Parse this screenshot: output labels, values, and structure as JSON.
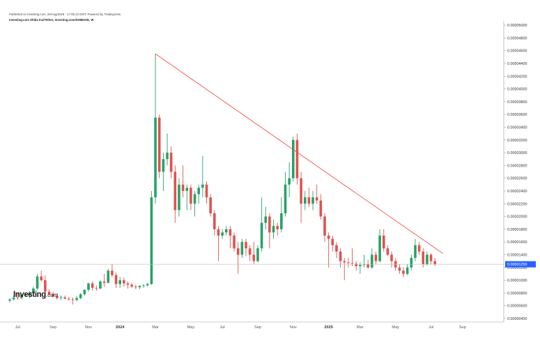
{
  "header": {
    "published_line": "Published on Investing.com, 26/Aug/2025 - 17:05:13 GMT, Powered by TradingView.",
    "url_line": "Investing.com Shiba Inu/Tether, Investing.com/SHIBUSD, W"
  },
  "logo": {
    "text": "Investing",
    "domain": ".com"
  },
  "price_label": "0.00001250",
  "colors": {
    "up": "#26a269",
    "down": "#e0524f",
    "trendline": "#f05050",
    "axis": "#9a9a9a",
    "price_tag": "#2962ff"
  },
  "chart_data": {
    "type": "candlestick",
    "title": "Investing.com Shiba Inu/Tether",
    "interval": "W",
    "ylim": [
      3.5e-06,
      5.2e-06
    ],
    "y_ticks": [
      "0.00000400",
      "0.00000600",
      "0.00000800",
      "0.00001000",
      "0.00001200",
      "0.00001400",
      "0.00001600",
      "0.00001800",
      "0.00002000",
      "0.00002200",
      "0.00002400",
      "0.00002600",
      "0.00002800",
      "0.00003000",
      "0.00003200",
      "0.00003400",
      "0.00003600",
      "0.00003800",
      "0.00004000",
      "0.00004200",
      "0.00004400",
      "0.00004600",
      "0.00004800",
      "0.00005000"
    ],
    "x_ticks": [
      {
        "label": "Jul",
        "bold": false,
        "week": 2
      },
      {
        "label": "Sep",
        "bold": false,
        "week": 11
      },
      {
        "label": "Nov",
        "bold": false,
        "week": 20
      },
      {
        "label": "2024",
        "bold": true,
        "week": 28
      },
      {
        "label": "Mar",
        "bold": false,
        "week": 37
      },
      {
        "label": "May",
        "bold": false,
        "week": 46
      },
      {
        "label": "Jul",
        "bold": false,
        "week": 54
      },
      {
        "label": "Sep",
        "bold": false,
        "week": 63
      },
      {
        "label": "Nov",
        "bold": false,
        "week": 72
      },
      {
        "label": "2025",
        "bold": true,
        "week": 81
      },
      {
        "label": "Mar",
        "bold": false,
        "week": 89
      },
      {
        "label": "May",
        "bold": false,
        "week": 98
      },
      {
        "label": "Jul",
        "bold": false,
        "week": 107
      },
      {
        "label": "Sep",
        "bold": false,
        "week": 115
      }
    ],
    "candles": [
      [
        6.8e-06,
        7.2e-06,
        6.5e-06,
        7e-06
      ],
      [
        7e-06,
        7.6e-06,
        6.8e-06,
        7.3e-06
      ],
      [
        7.3e-06,
        8e-06,
        6.9e-06,
        7.2e-06
      ],
      [
        7.2e-06,
        7.8e-06,
        7e-06,
        7.7e-06
      ],
      [
        7.7e-06,
        8.1e-06,
        7.4e-06,
        7.6e-06
      ],
      [
        7.6e-06,
        8.3e-06,
        7.2e-06,
        8e-06
      ],
      [
        8e-06,
        9e-06,
        7.8e-06,
        8.7e-06
      ],
      [
        8.7e-06,
        1.1e-05,
        8.5e-06,
        1.06e-05
      ],
      [
        1.06e-05,
        1.15e-05,
        9.8e-06,
        1e-05
      ],
      [
        1e-05,
        1.08e-05,
        7e-06,
        8.2e-06
      ],
      [
        8.2e-06,
        8.6e-06,
        7.6e-06,
        7.8e-06
      ],
      [
        7.8e-06,
        8.2e-06,
        7.3e-06,
        7.5e-06
      ],
      [
        7.5e-06,
        7.9e-06,
        7e-06,
        7.2e-06
      ],
      [
        7.2e-06,
        7.6e-06,
        6.9e-06,
        7.3e-06
      ],
      [
        7.3e-06,
        7.6e-06,
        7e-06,
        7.1e-06
      ],
      [
        7.1e-06,
        7.4e-06,
        6.8e-06,
        7e-06
      ],
      [
        7e-06,
        7.3e-06,
        6.2e-06,
        6.9e-06
      ],
      [
        6.9e-06,
        7.5e-06,
        6.7e-06,
        7.2e-06
      ],
      [
        7.2e-06,
        8e-06,
        7e-06,
        7.8e-06
      ],
      [
        7.8e-06,
        8.6e-06,
        7.6e-06,
        8.5e-06
      ],
      [
        8.5e-06,
        9.6e-06,
        8.2e-06,
        9.5e-06
      ],
      [
        9.5e-06,
        9.8e-06,
        8.4e-06,
        8.8e-06
      ],
      [
        8.8e-06,
        9.2e-06,
        8.3e-06,
        8.7e-06
      ],
      [
        8.7e-06,
        1e-05,
        8.6e-06,
        9.8e-06
      ],
      [
        9.8e-06,
        1.1e-05,
        9e-06,
        9.6e-06
      ],
      [
        9.6e-06,
        1.18e-05,
        9.5e-06,
        1.15e-05
      ],
      [
        1.15e-05,
        1.25e-05,
        1.05e-05,
        1.08e-05
      ],
      [
        1.08e-05,
        1.12e-05,
        8.8e-06,
        9.4e-06
      ],
      [
        9.4e-06,
        1.05e-05,
        8.8e-06,
        1e-05
      ],
      [
        1e-05,
        1.04e-05,
        9e-06,
        9.5e-06
      ],
      [
        9.5e-06,
        9.8e-06,
        8.7e-06,
        9.3e-06
      ],
      [
        9.3e-06,
        9.6e-06,
        8.8e-06,
        9e-06
      ],
      [
        9e-06,
        9.3e-06,
        8.6e-06,
        8.9e-06
      ],
      [
        8.9e-06,
        9.2e-06,
        8.6e-06,
        9.1e-06
      ],
      [
        9.1e-06,
        9.4e-06,
        8.8e-06,
        9.2e-06
      ],
      [
        9.2e-06,
        9.6e-06,
        9e-06,
        9.4e-06
      ],
      [
        9.4e-06,
        2.4e-05,
        9.3e-06,
        2.3e-05
      ],
      [
        2.3e-05,
        4.55e-05,
        2.2e-05,
        3.55e-05
      ],
      [
        3.55e-05,
        3.6e-05,
        2.6e-05,
        2.7e-05
      ],
      [
        2.7e-05,
        3e-05,
        2.4e-05,
        2.9e-05
      ],
      [
        2.9e-05,
        3.3e-05,
        2.8e-05,
        3e-05
      ],
      [
        3e-05,
        3.1e-05,
        2.6e-05,
        2.7e-05
      ],
      [
        2.7e-05,
        2.8e-05,
        1.9e-05,
        2.1e-05
      ],
      [
        2.1e-05,
        2.6e-05,
        2e-05,
        2.5e-05
      ],
      [
        2.5e-05,
        2.8e-05,
        2.3e-05,
        2.4e-05
      ],
      [
        2.4e-05,
        2.5e-05,
        2.1e-05,
        2.45e-05
      ],
      [
        2.45e-05,
        2.5e-05,
        2.1e-05,
        2.2e-05
      ],
      [
        2.2e-05,
        2.4e-05,
        2e-05,
        2.35e-05
      ],
      [
        2.35e-05,
        2.5e-05,
        2.2e-05,
        2.45e-05
      ],
      [
        2.45e-05,
        2.95e-05,
        2.3e-05,
        2.5e-05
      ],
      [
        2.5e-05,
        2.55e-05,
        2.2e-05,
        2.3e-05
      ],
      [
        2.3e-05,
        2.35e-05,
        2e-05,
        2.05e-05
      ],
      [
        2.05e-05,
        2.1e-05,
        1.7e-05,
        1.8e-05
      ],
      [
        1.8e-05,
        1.85e-05,
        1.3e-05,
        1.7e-05
      ],
      [
        1.7e-05,
        1.8e-05,
        1.65e-05,
        1.75e-05
      ],
      [
        1.75e-05,
        1.85e-05,
        1.7e-05,
        1.8e-05
      ],
      [
        1.8e-05,
        1.85e-05,
        1.5e-05,
        1.7e-05
      ],
      [
        1.7e-05,
        1.75e-05,
        1.45e-05,
        1.5e-05
      ],
      [
        1.5e-05,
        1.6e-05,
        1.1e-05,
        1.4e-05
      ],
      [
        1.4e-05,
        1.65e-05,
        1.35e-05,
        1.6e-05
      ],
      [
        1.6e-05,
        1.65e-05,
        1.38e-05,
        1.5e-05
      ],
      [
        1.5e-05,
        1.55e-05,
        1.3e-05,
        1.4e-05
      ],
      [
        1.4e-05,
        1.6e-05,
        1.25e-05,
        1.3e-05
      ],
      [
        1.3e-05,
        1.55e-05,
        1.28e-05,
        1.5e-05
      ],
      [
        1.5e-05,
        2.3e-05,
        1.45e-05,
        1.9e-05
      ],
      [
        1.9e-05,
        2.15e-05,
        1.8e-05,
        2e-05
      ],
      [
        2e-05,
        2.05e-05,
        1.5e-05,
        1.75e-05
      ],
      [
        1.75e-05,
        1.95e-05,
        1.65e-05,
        1.85e-05
      ],
      [
        1.85e-05,
        1.9e-05,
        1.7e-05,
        1.8e-05
      ],
      [
        1.8e-05,
        2.3e-05,
        1.75e-05,
        2.05e-05
      ],
      [
        2.05e-05,
        2.7e-05,
        2e-05,
        2.5e-05
      ],
      [
        2.5e-05,
        2.85e-05,
        2.3e-05,
        2.6e-05
      ],
      [
        2.6e-05,
        3.25e-05,
        2.55e-05,
        3.2e-05
      ],
      [
        3.2e-05,
        3.3e-05,
        2.5e-05,
        2.6e-05
      ],
      [
        2.6e-05,
        2.7e-05,
        1.9e-05,
        2.2e-05
      ],
      [
        2.2e-05,
        2.4e-05,
        2.1e-05,
        2.3e-05
      ],
      [
        2.3e-05,
        2.45e-05,
        2.15e-05,
        2.2e-05
      ],
      [
        2.2e-05,
        2.4e-05,
        2.1e-05,
        2.3e-05
      ],
      [
        2.3e-05,
        2.5e-05,
        2.2e-05,
        2.25e-05
      ],
      [
        2.25e-05,
        2.35e-05,
        1.95e-05,
        2e-05
      ],
      [
        2e-05,
        2.05e-05,
        1.6e-05,
        1.7e-05
      ],
      [
        1.7e-05,
        1.75e-05,
        1.2e-05,
        1.65e-05
      ],
      [
        1.65e-05,
        1.7e-05,
        1.45e-05,
        1.55e-05
      ],
      [
        1.55e-05,
        1.6e-05,
        1.35e-05,
        1.45e-05
      ],
      [
        1.45e-05,
        1.5e-05,
        1.2e-05,
        1.3e-05
      ],
      [
        1.3e-05,
        1.35e-05,
        1e-05,
        1.28e-05
      ],
      [
        1.28e-05,
        1.35e-05,
        1.2e-05,
        1.27e-05
      ],
      [
        1.27e-05,
        1.5e-05,
        1.22e-05,
        1.26e-05
      ],
      [
        1.26e-05,
        1.3e-05,
        1.15e-05,
        1.22e-05
      ],
      [
        1.22e-05,
        1.28e-05,
        1.1e-05,
        1.24e-05
      ],
      [
        1.24e-05,
        1.4e-05,
        1.2e-05,
        1.25e-05
      ],
      [
        1.25e-05,
        1.32e-05,
        1.18e-05,
        1.2e-05
      ],
      [
        1.2e-05,
        1.5e-05,
        1.18e-05,
        1.4e-05
      ],
      [
        1.4e-05,
        1.45e-05,
        1.25e-05,
        1.3e-05
      ],
      [
        1.3e-05,
        1.8e-05,
        1.28e-05,
        1.7e-05
      ],
      [
        1.7e-05,
        1.8e-05,
        1.45e-05,
        1.5e-05
      ],
      [
        1.5e-05,
        1.55e-05,
        1.38e-05,
        1.4e-05
      ],
      [
        1.4e-05,
        1.45e-05,
        1.2e-05,
        1.3e-05
      ],
      [
        1.3e-05,
        1.35e-05,
        1.15e-05,
        1.2e-05
      ],
      [
        1.2e-05,
        1.25e-05,
        1.1e-05,
        1.15e-05
      ],
      [
        1.15e-05,
        1.2e-05,
        1.05e-05,
        1.1e-05
      ],
      [
        1.1e-05,
        1.25e-05,
        1.08e-05,
        1.2e-05
      ],
      [
        1.2e-05,
        1.4e-05,
        1.15e-05,
        1.35e-05
      ],
      [
        1.35e-05,
        1.65e-05,
        1.3e-05,
        1.55e-05
      ],
      [
        1.55e-05,
        1.6e-05,
        1.4e-05,
        1.45e-05
      ],
      [
        1.45e-05,
        1.5e-05,
        1.2e-05,
        1.25e-05
      ],
      [
        1.25e-05,
        1.45e-05,
        1.23e-05,
        1.4e-05
      ],
      [
        1.4e-05,
        1.42e-05,
        1.25e-05,
        1.3e-05
      ],
      [
        1.3e-05,
        1.35e-05,
        1.22e-05,
        1.25e-05
      ]
    ],
    "trendline": {
      "from": {
        "week": 37,
        "value": 4.55e-05
      },
      "to": {
        "week": 110,
        "value": 1.42e-05
      }
    },
    "last_price": 1.25e-05
  }
}
